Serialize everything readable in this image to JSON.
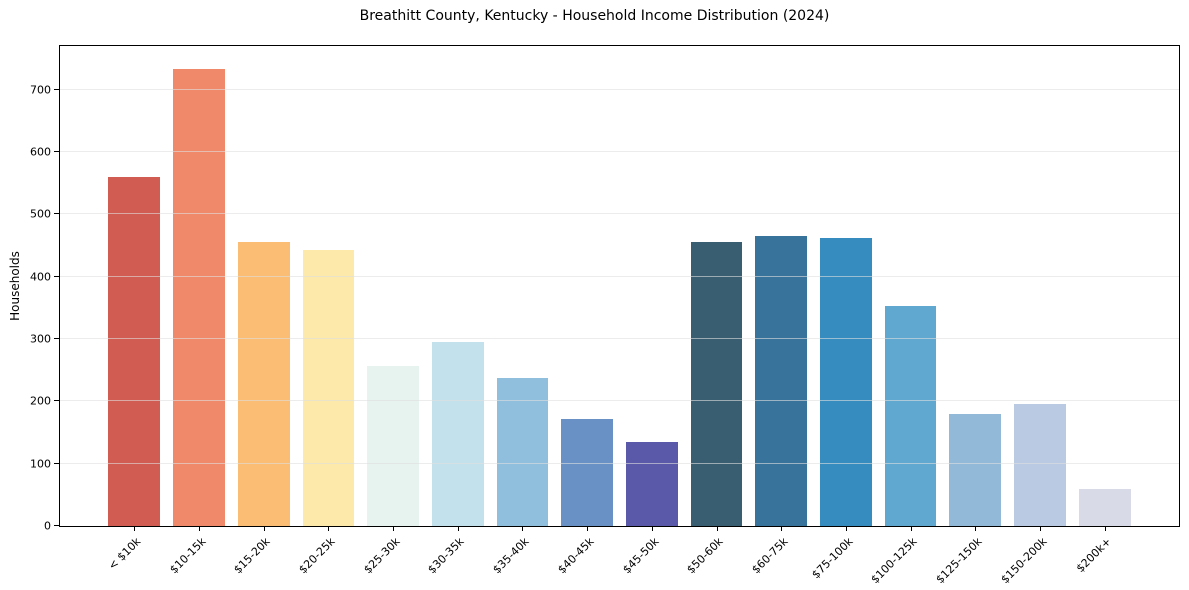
{
  "chart_data": {
    "type": "bar",
    "title": "Breathitt County, Kentucky - Household Income Distribution (2024)",
    "xlabel": "",
    "ylabel": "Households",
    "categories": [
      "< $10k",
      "$10-15k",
      "$15-20k",
      "$20-25k",
      "$25-30k",
      "$30-35k",
      "$35-40k",
      "$40-45k",
      "$45-50k",
      "$50-60k",
      "$60-75k",
      "$75-100k",
      "$100-125k",
      "$125-150k",
      "$150-200k",
      "$200k+"
    ],
    "values": [
      560,
      733,
      455,
      442,
      257,
      295,
      237,
      171,
      134,
      456,
      466,
      462,
      353,
      179,
      195,
      60
    ],
    "bar_colors": [
      "#d15c52",
      "#f0896a",
      "#fbbc74",
      "#fde9a9",
      "#e7f3ef",
      "#c3e1ec",
      "#90bedd",
      "#6991c6",
      "#5a58a8",
      "#3a5e71",
      "#38739c",
      "#368cbf",
      "#60a8d0",
      "#93b9d9",
      "#b9cae2",
      "#d8dae7"
    ],
    "ylim": [
      0,
      770
    ],
    "yticks": [
      0,
      100,
      200,
      300,
      400,
      500,
      600,
      700
    ],
    "x_tick_rotation_deg": 45,
    "grid": "horizontal",
    "grid_color": "#e0e0e0",
    "spine_color": "#000000",
    "text_color": "#000000",
    "background_color": "#ffffff",
    "legend": "none"
  }
}
